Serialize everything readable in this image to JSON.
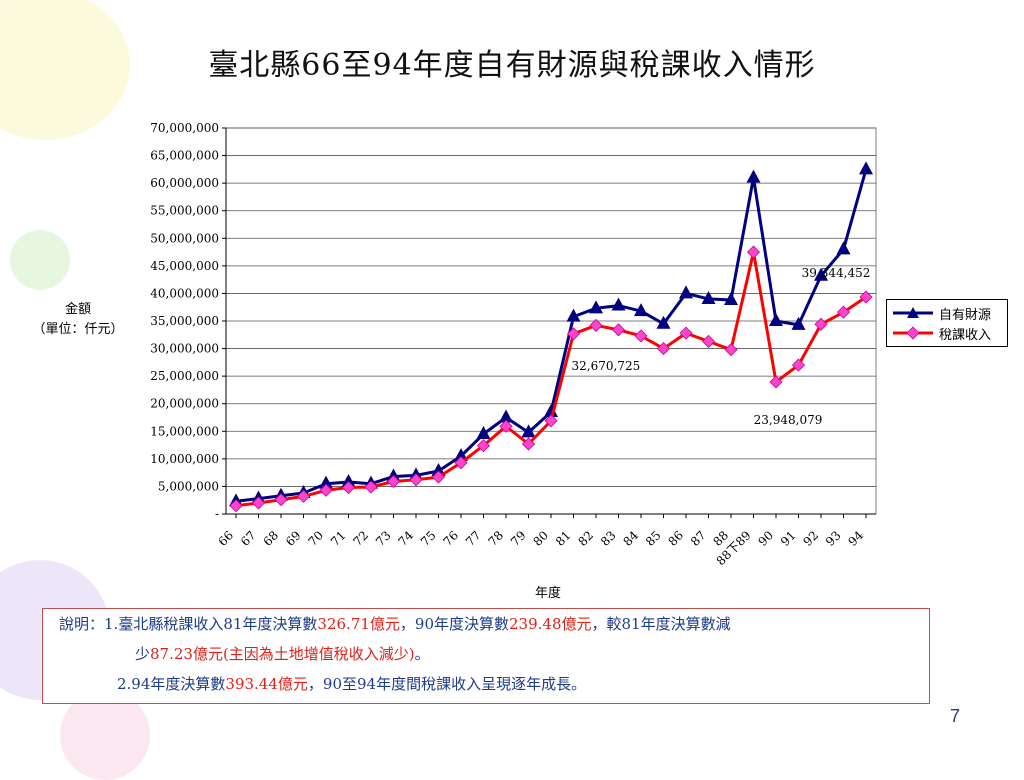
{
  "title": "臺北縣66至94年度自有財源與稅課收入情形",
  "chart_data": {
    "type": "line",
    "ylabel_line1": "金額",
    "ylabel_line2": "（單位：仟元）",
    "xlabel": "年度",
    "ylim": [
      0,
      70000000
    ],
    "ytick_step": 5000000,
    "yticks": [
      "-",
      "5,000,000",
      "10,000,000",
      "15,000,000",
      "20,000,000",
      "25,000,000",
      "30,000,000",
      "35,000,000",
      "40,000,000",
      "45,000,000",
      "50,000,000",
      "55,000,000",
      "60,000,000",
      "65,000,000",
      "70,000,000"
    ],
    "categories": [
      "66",
      "67",
      "68",
      "69",
      "70",
      "71",
      "72",
      "73",
      "74",
      "75",
      "76",
      "77",
      "78",
      "79",
      "80",
      "81",
      "82",
      "83",
      "84",
      "85",
      "86",
      "87",
      "88",
      "88下89",
      "90",
      "91",
      "92",
      "93",
      "94"
    ],
    "series": [
      {
        "name": "自有財源",
        "color": "#000080",
        "marker": "triangle",
        "values": [
          2300000,
          2800000,
          3300000,
          3800000,
          5500000,
          5800000,
          5500000,
          6800000,
          7000000,
          7800000,
          10500000,
          14500000,
          17500000,
          14800000,
          18500000,
          35800000,
          37300000,
          37800000,
          36800000,
          34500000,
          40000000,
          39000000,
          38800000,
          61000000,
          35000000,
          34300000,
          43200000,
          48000000,
          62500000
        ]
      },
      {
        "name": "稅課收入",
        "color": "#ff0000",
        "marker": "diamond",
        "values": [
          1500000,
          2000000,
          2600000,
          3200000,
          4300000,
          4800000,
          4900000,
          5900000,
          6200000,
          6700000,
          9300000,
          12400000,
          15900000,
          12700000,
          16900000,
          32670725,
          34200000,
          33400000,
          32300000,
          30000000,
          32800000,
          31300000,
          29800000,
          47500000,
          23948079,
          27000000,
          34400000,
          36600000,
          39344452
        ]
      }
    ],
    "annotations": [
      {
        "text": "39,344,452",
        "series": 1,
        "index": 28
      },
      {
        "text": "32,670,725",
        "series": 1,
        "index": 15
      },
      {
        "text": "23,948,079",
        "series": 1,
        "index": 24
      }
    ]
  },
  "legend": [
    "自有財源",
    "稅課收入"
  ],
  "note": {
    "prefix": "說明：",
    "item1_a": "1.臺北縣稅課收入81年度決算數",
    "item1_v1": "326.71億元",
    "item1_b": "，90年度決算數",
    "item1_v2": "239.48億元",
    "item1_c": "，較81年度決算數減",
    "item1_d": "少",
    "item1_v3": "87.23億元(主因為土地增值稅收入減少)",
    "item1_e": "。",
    "item2_a": "2.94年度決算數",
    "item2_v1": "393.44億元",
    "item2_b": "，90至94年度間稅課收入呈現逐年成長。"
  },
  "page_number": "7"
}
